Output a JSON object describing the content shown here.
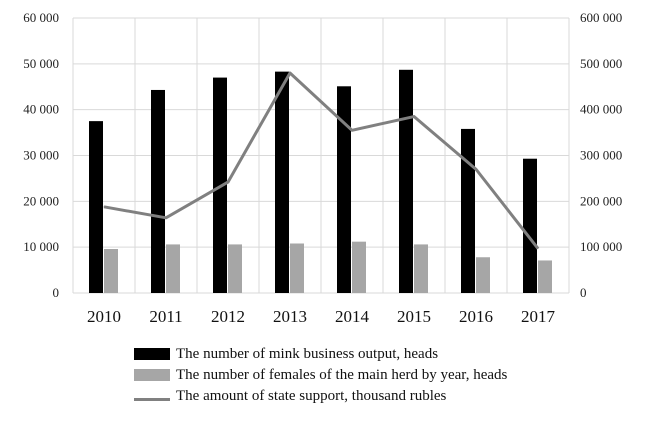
{
  "chart_data": {
    "type": "bar",
    "categories": [
      "2010",
      "2011",
      "2012",
      "2013",
      "2014",
      "2015",
      "2016",
      "2017"
    ],
    "series": [
      {
        "name": "The number of mink business output, heads",
        "type": "bar",
        "axis": "left",
        "color": "#000000",
        "values": [
          37500,
          44300,
          47000,
          48300,
          45100,
          48700,
          35800,
          29300
        ]
      },
      {
        "name": "The number of females of the main herd by year, heads",
        "type": "bar",
        "axis": "left",
        "color": "#a6a6a6",
        "values": [
          9600,
          10600,
          10600,
          10800,
          11200,
          10600,
          7800,
          7100
        ]
      },
      {
        "name": "The amount of state support, thousand rubles",
        "type": "line",
        "axis": "right",
        "color": "#808080",
        "values": [
          188000,
          164000,
          242000,
          480000,
          355000,
          385000,
          270000,
          97000
        ]
      }
    ],
    "y_left": {
      "min": 0,
      "max": 60000,
      "ticks": [
        "0",
        "10 000",
        "20 000",
        "30 000",
        "40 000",
        "50 000",
        "60 000"
      ]
    },
    "y_right": {
      "min": 0,
      "max": 600000,
      "ticks": [
        "0",
        "100 000",
        "200 000",
        "300 000",
        "400 000",
        "500 000",
        "600 000"
      ]
    },
    "grid": true,
    "legend_position": "bottom"
  }
}
